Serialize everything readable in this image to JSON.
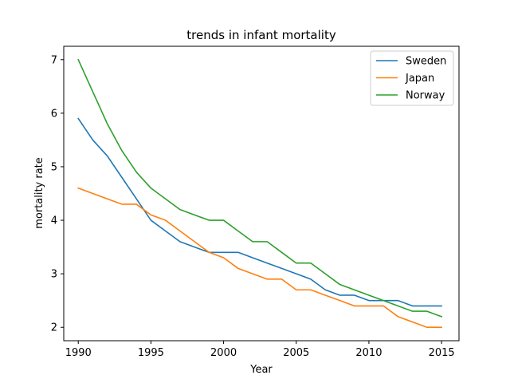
{
  "chart_data": {
    "type": "line",
    "title": "trends in infant mortality",
    "xlabel": "Year",
    "ylabel": "mortality rate",
    "xlim": [
      1989,
      2016.2
    ],
    "ylim": [
      1.75,
      7.25
    ],
    "xticks": [
      1990,
      1995,
      2000,
      2005,
      2010,
      2015
    ],
    "yticks": [
      2,
      3,
      4,
      5,
      6,
      7
    ],
    "grid": false,
    "legend": "top-right",
    "x": [
      1990,
      1991,
      1992,
      1993,
      1994,
      1995,
      1996,
      1997,
      1998,
      1999,
      2000,
      2001,
      2002,
      2003,
      2004,
      2005,
      2006,
      2007,
      2008,
      2009,
      2010,
      2011,
      2012,
      2013,
      2014,
      2015
    ],
    "series": [
      {
        "name": "Sweden",
        "color": "#1f77b4",
        "values": [
          5.9,
          5.5,
          5.2,
          4.8,
          4.4,
          4.0,
          3.8,
          3.6,
          3.5,
          3.4,
          3.4,
          3.4,
          3.3,
          3.2,
          3.1,
          3.0,
          2.9,
          2.7,
          2.6,
          2.6,
          2.5,
          2.5,
          2.5,
          2.4,
          2.4,
          2.4
        ]
      },
      {
        "name": "Japan",
        "color": "#ff7f0e",
        "values": [
          4.6,
          4.5,
          4.4,
          4.3,
          4.3,
          4.1,
          4.0,
          3.8,
          3.6,
          3.4,
          3.3,
          3.1,
          3.0,
          2.9,
          2.9,
          2.7,
          2.7,
          2.6,
          2.5,
          2.4,
          2.4,
          2.4,
          2.2,
          2.1,
          2.0,
          2.0
        ]
      },
      {
        "name": "Norway",
        "color": "#2ca02c",
        "values": [
          7.0,
          6.4,
          5.8,
          5.3,
          4.9,
          4.6,
          4.4,
          4.2,
          4.1,
          4.0,
          4.0,
          3.8,
          3.6,
          3.6,
          3.4,
          3.2,
          3.2,
          3.0,
          2.8,
          2.7,
          2.6,
          2.5,
          2.4,
          2.3,
          2.3,
          2.2
        ]
      }
    ]
  }
}
